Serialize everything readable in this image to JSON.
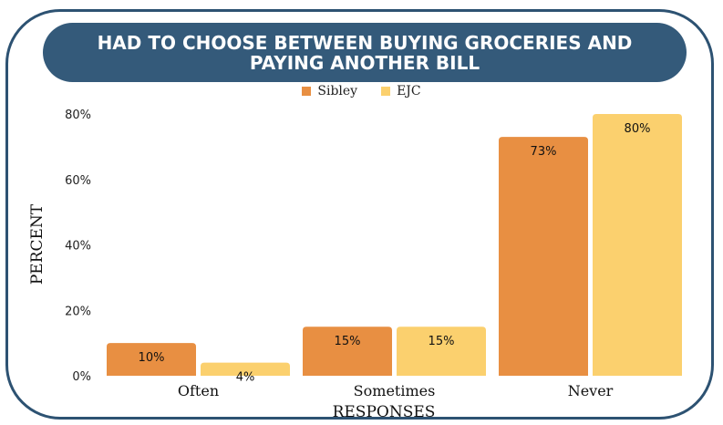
{
  "chart_data": {
    "type": "bar",
    "title": "HAD TO CHOOSE BETWEEN BUYING GROCERIES AND PAYING ANOTHER BILL",
    "xlabel": "RESPONSES",
    "ylabel": "PERCENT",
    "categories": [
      "Often",
      "Sometimes",
      "Never"
    ],
    "series": [
      {
        "name": "Sibley",
        "values": [
          10,
          15,
          73
        ],
        "labels": [
          "10%",
          "15%",
          "73%"
        ],
        "color": "#e88f42"
      },
      {
        "name": "EJC",
        "values": [
          4,
          15,
          80
        ],
        "labels": [
          "4%",
          "15%",
          "80%"
        ],
        "color": "#fbd06e"
      }
    ],
    "ylim": [
      0,
      80
    ],
    "yticks": [
      0,
      20,
      40,
      60,
      80
    ],
    "ytick_labels": [
      "0%",
      "20%",
      "40%",
      "60%",
      "80%"
    ],
    "grid": false,
    "legend_position": "top-center"
  },
  "colors": {
    "frame": "#2d5272",
    "banner": "#345a7a"
  }
}
